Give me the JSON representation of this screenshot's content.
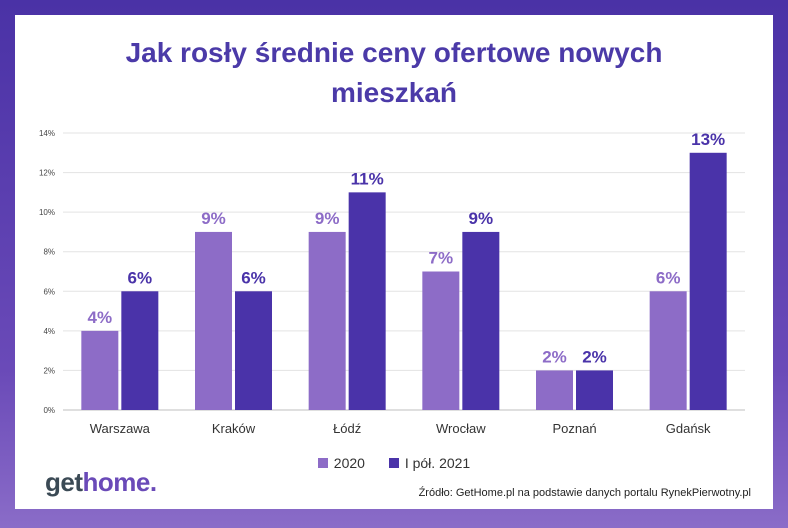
{
  "title_line1": "Jak rosły średnie ceny ofertowe nowych",
  "title_line2": "mieszkań",
  "logo": {
    "part1": "get",
    "part2": "home."
  },
  "source": "Źródło: GetHome.pl na podstawie danych portalu RynekPierwotny.pl",
  "colors": {
    "series_2020": "#8d6cc7",
    "series_2021": "#4a33a9"
  },
  "chart_data": {
    "type": "bar",
    "title": "Jak rosły średnie ceny ofertowe nowych mieszkań",
    "categories": [
      "Warszawa",
      "Kraków",
      "Łódź",
      "Wrocław",
      "Poznań",
      "Gdańsk"
    ],
    "series": [
      {
        "name": "2020",
        "values": [
          4,
          9,
          9,
          7,
          2,
          6
        ],
        "labels": [
          "4%",
          "9%",
          "9%",
          "7%",
          "2%",
          "6%"
        ]
      },
      {
        "name": "I pół. 2021",
        "values": [
          6,
          6,
          11,
          9,
          2,
          13
        ],
        "labels": [
          "6%",
          "6%",
          "11%",
          "9%",
          "2%",
          "13%"
        ]
      }
    ],
    "yticks": [
      "0%",
      "2%",
      "4%",
      "6%",
      "8%",
      "10%",
      "12%",
      "14%"
    ],
    "ylim": [
      0,
      14
    ],
    "grid": true,
    "legend": "bottom"
  }
}
